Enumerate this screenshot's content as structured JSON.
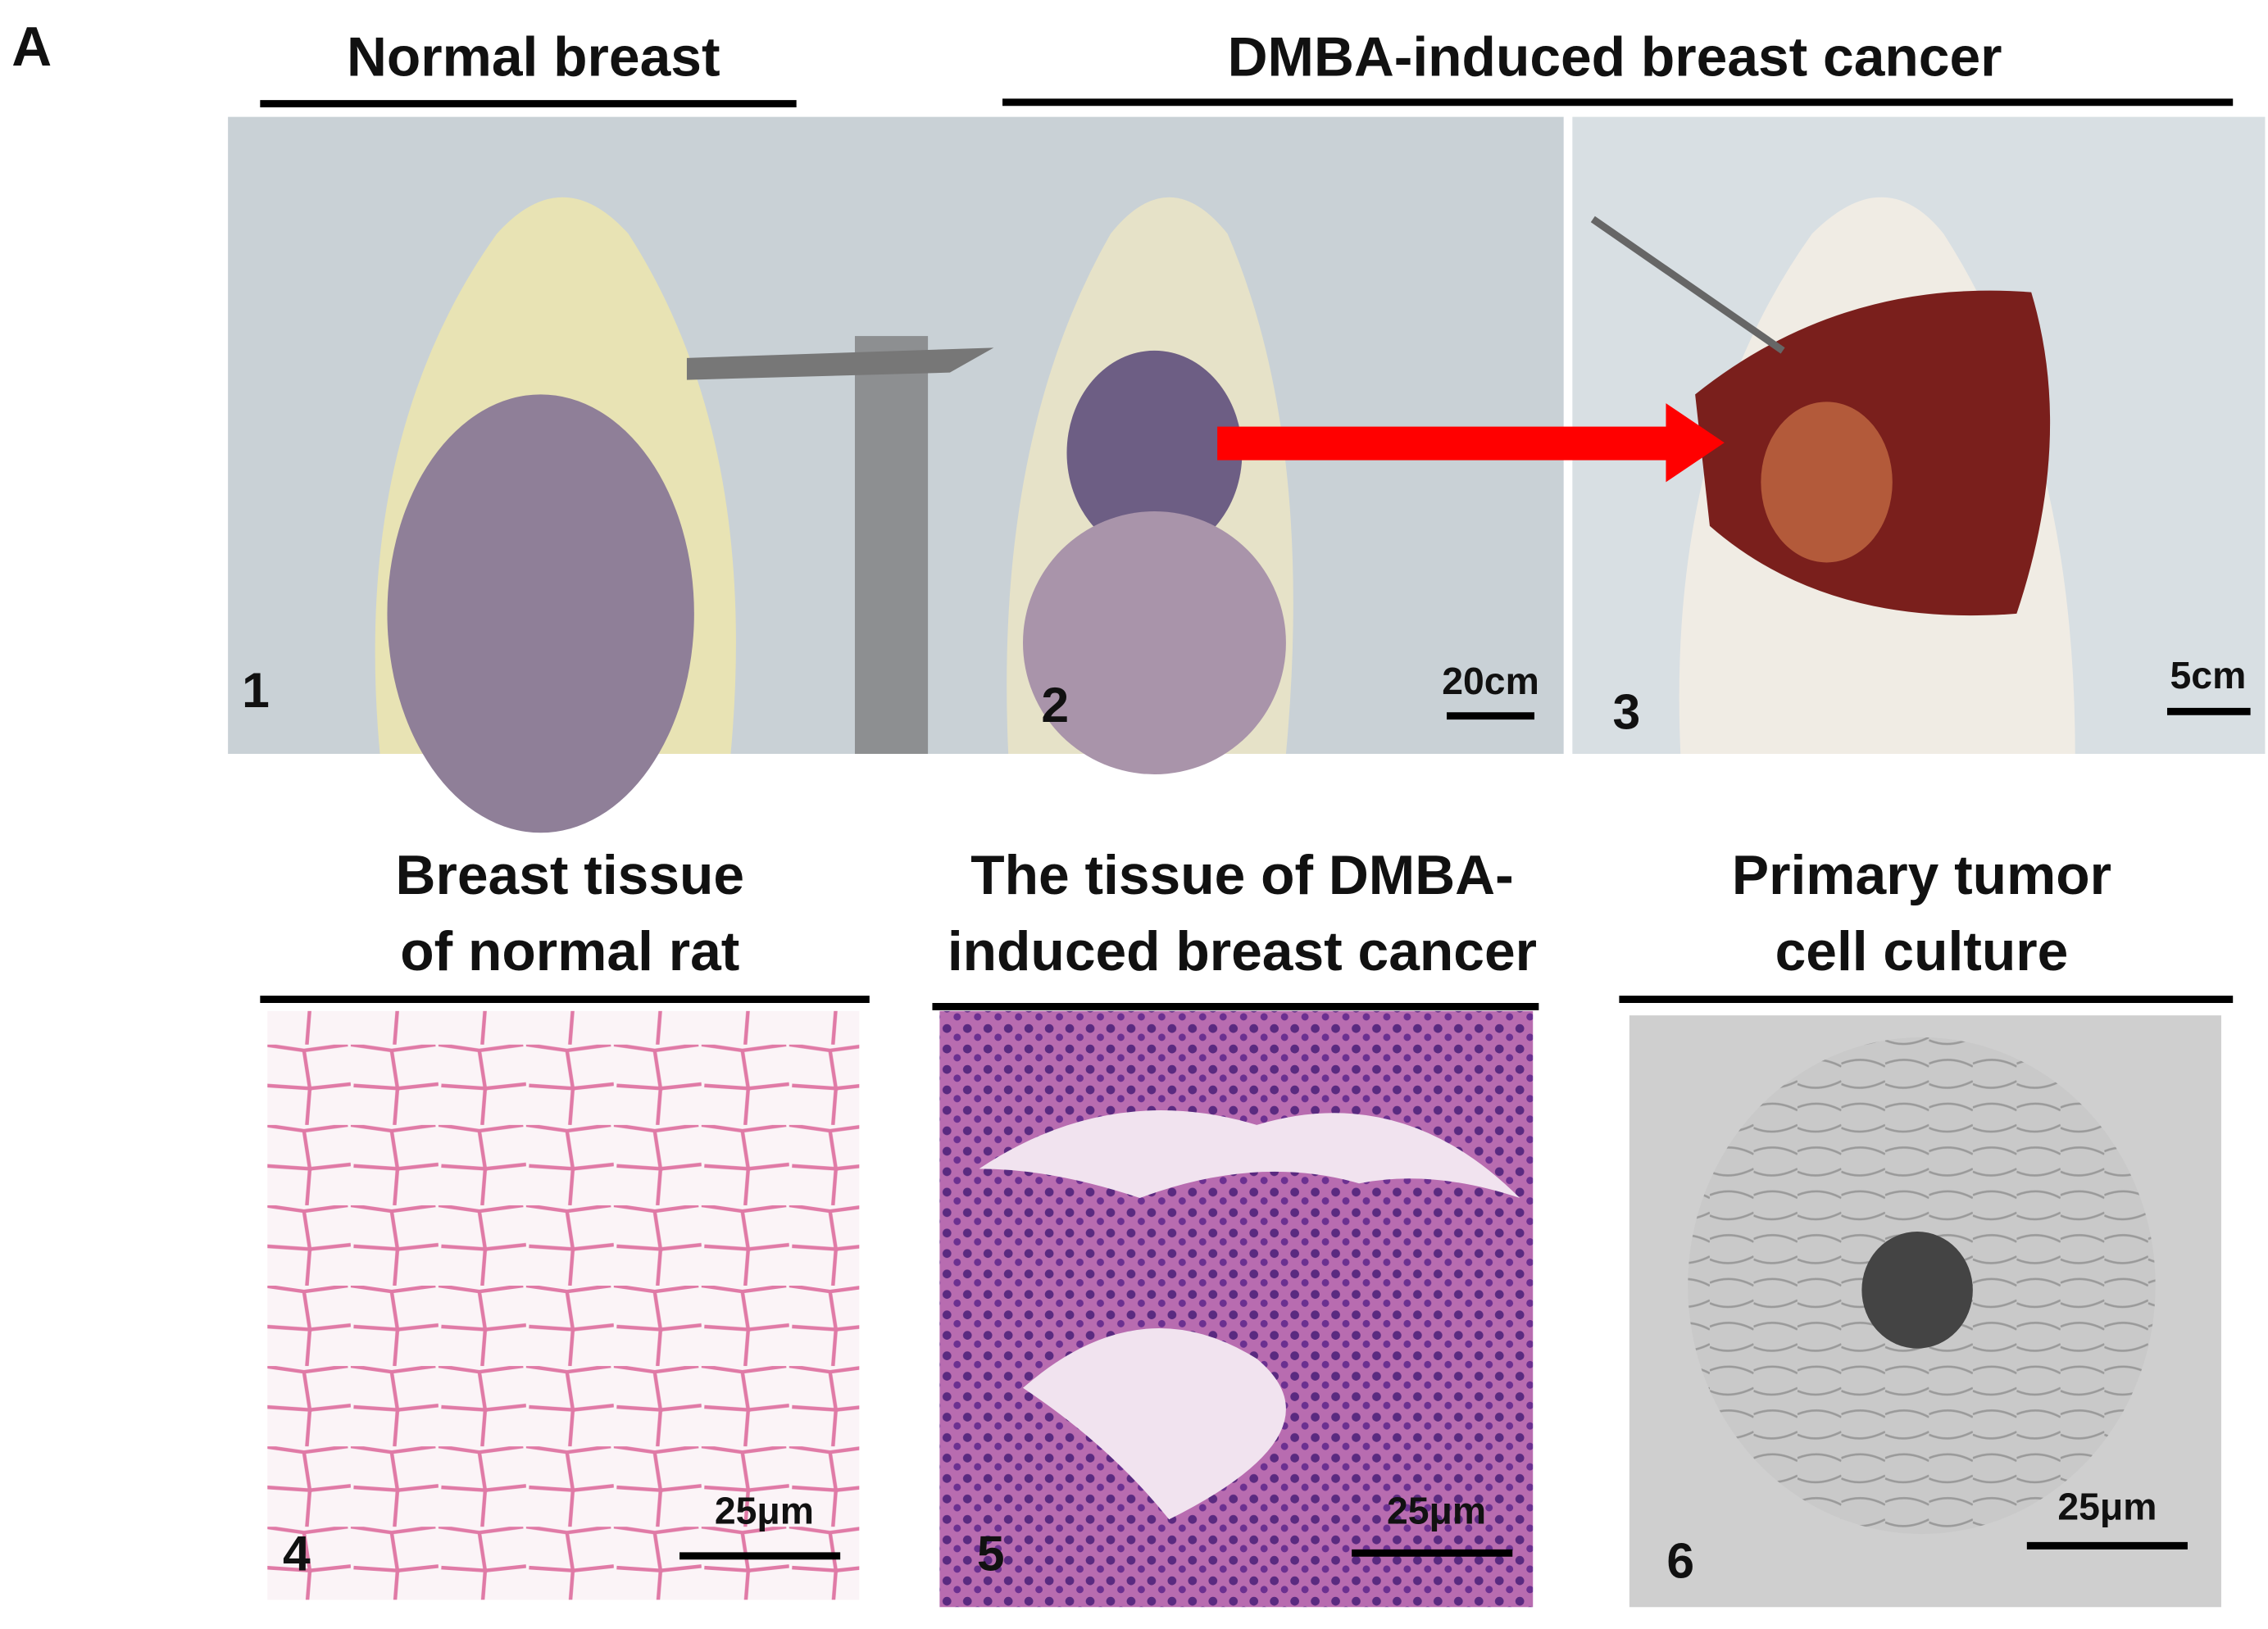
{
  "panel_label": "A",
  "top": {
    "headers": [
      "Normal breast",
      "DMBA-induced breast cancer"
    ],
    "photos": [
      {
        "number": "1"
      },
      {
        "number": "2",
        "scale_bar": "20cm"
      },
      {
        "number": "3",
        "scale_bar": "5cm"
      }
    ]
  },
  "bottom": {
    "panels": [
      {
        "title_lines": [
          "Breast tissue",
          "of normal rat"
        ],
        "number": "4",
        "scale_bar": "25μm"
      },
      {
        "title_lines": [
          "The tissue of DMBA-",
          "induced breast cancer"
        ],
        "number": "5",
        "scale_bar": "25μm"
      },
      {
        "title_lines": [
          "Primary tumor",
          "cell culture"
        ],
        "number": "6",
        "scale_bar": "25μm"
      }
    ]
  }
}
